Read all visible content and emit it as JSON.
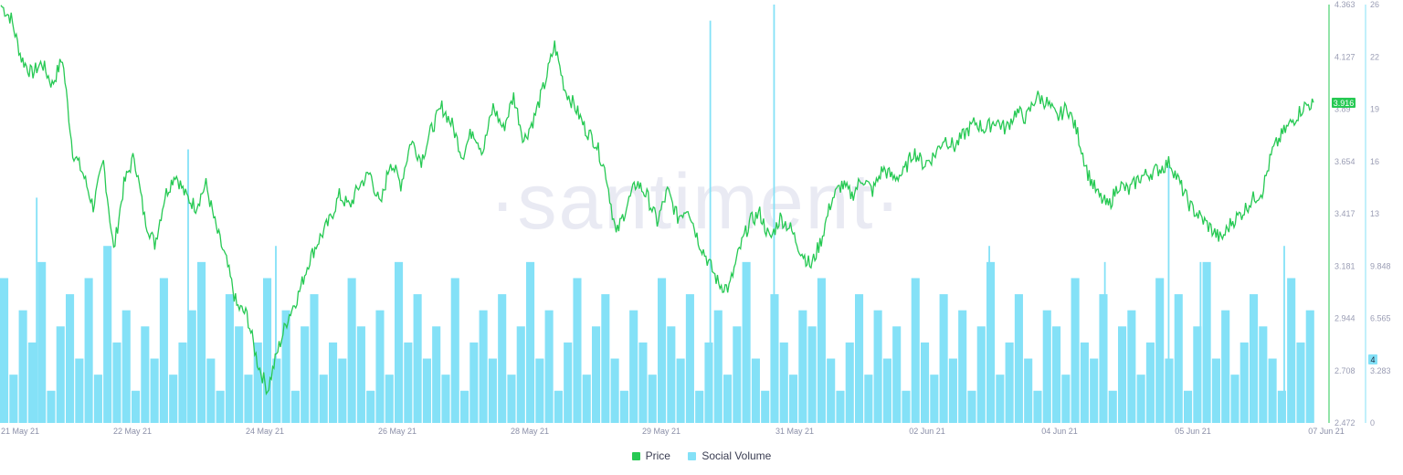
{
  "chart_data": {
    "type": "line",
    "watermark": "·santiment·",
    "x_tick_labels": [
      "21 May 21",
      "22 May 21",
      "24 May 21",
      "26 May 21",
      "28 May 21",
      "29 May 21",
      "31 May 21",
      "02 Jun 21",
      "04 Jun 21",
      "05 Jun 21",
      "07 Jun 21"
    ],
    "price_axis": {
      "ticks": [
        "4.363",
        "4.127",
        "3.89",
        "3.654",
        "3.417",
        "3.181",
        "2.944",
        "2.708",
        "2.472"
      ],
      "min": 2.472,
      "max": 4.363
    },
    "volume_axis": {
      "ticks": [
        "26",
        "22",
        "19",
        "16",
        "13",
        "9.848",
        "6.565",
        "3.283",
        "0"
      ],
      "min": 0,
      "max": 26
    },
    "current_price": "3.916",
    "current_volume": "4",
    "series": [
      {
        "name": "Price",
        "type": "line",
        "color": "#26c953",
        "values": [
          4.36,
          4.3,
          4.12,
          4.05,
          4.1,
          4.0,
          4.12,
          3.7,
          3.6,
          3.45,
          3.65,
          3.25,
          3.55,
          3.68,
          3.4,
          3.28,
          3.5,
          3.6,
          3.5,
          3.45,
          3.55,
          3.35,
          3.2,
          3.0,
          2.96,
          2.75,
          2.62,
          2.8,
          2.95,
          3.05,
          3.2,
          3.3,
          3.38,
          3.5,
          3.45,
          3.55,
          3.6,
          3.45,
          3.66,
          3.55,
          3.75,
          3.66,
          3.8,
          3.9,
          3.82,
          3.68,
          3.8,
          3.7,
          3.9,
          3.8,
          3.95,
          3.75,
          3.85,
          4.0,
          4.18,
          3.98,
          3.9,
          3.8,
          3.74,
          3.6,
          3.32,
          3.45,
          3.56,
          3.5,
          3.38,
          3.52,
          3.4,
          3.45,
          3.3,
          3.2,
          3.1,
          3.08,
          3.25,
          3.38,
          3.42,
          3.3,
          3.4,
          3.35,
          3.25,
          3.18,
          3.3,
          3.48,
          3.55,
          3.5,
          3.58,
          3.52,
          3.62,
          3.58,
          3.6,
          3.7,
          3.64,
          3.68,
          3.76,
          3.72,
          3.78,
          3.83,
          3.8,
          3.84,
          3.8,
          3.88,
          3.85,
          3.95,
          3.92,
          3.85,
          3.9,
          3.78,
          3.6,
          3.5,
          3.45,
          3.55,
          3.52,
          3.58,
          3.6,
          3.62,
          3.65,
          3.55,
          3.45,
          3.4,
          3.35,
          3.3,
          3.38,
          3.42,
          3.48,
          3.52,
          3.7,
          3.78,
          3.84,
          3.9,
          3.92
        ]
      },
      {
        "name": "Social Volume",
        "type": "bar",
        "color": "#84e1f7",
        "values": [
          9,
          3,
          7,
          5,
          10,
          2,
          6,
          8,
          4,
          9,
          3,
          11,
          5,
          7,
          2,
          6,
          4,
          9,
          3,
          5,
          7,
          10,
          4,
          2,
          8,
          6,
          3,
          5,
          9,
          4,
          7,
          2,
          6,
          8,
          3,
          5,
          4,
          9,
          6,
          2,
          7,
          3,
          10,
          5,
          8,
          4,
          6,
          3,
          9,
          2,
          5,
          7,
          4,
          8,
          3,
          6,
          10,
          4,
          7,
          2,
          5,
          9,
          3,
          6,
          8,
          4,
          2,
          7,
          5,
          3,
          9,
          6,
          4,
          8,
          2,
          5,
          7,
          3,
          6,
          10,
          4,
          2,
          8,
          5,
          3,
          7,
          6,
          9,
          4,
          2,
          5,
          8,
          3,
          7,
          4,
          6,
          2,
          9,
          5,
          3,
          8,
          4,
          7,
          2,
          6,
          10,
          3,
          5,
          8,
          4,
          2,
          7,
          6,
          3,
          9,
          5,
          4,
          8,
          2,
          6,
          7,
          3,
          5,
          9,
          4,
          8,
          2,
          6,
          10,
          4,
          7,
          3,
          5,
          8,
          6,
          4,
          2,
          9,
          5,
          7
        ]
      },
      {
        "name": "Social Volume spikes",
        "values": [
          14,
          17,
          11,
          25,
          26,
          11,
          10,
          16,
          10,
          11
        ]
      }
    ]
  },
  "legend": {
    "price_label": "Price",
    "volume_label": "Social Volume"
  }
}
